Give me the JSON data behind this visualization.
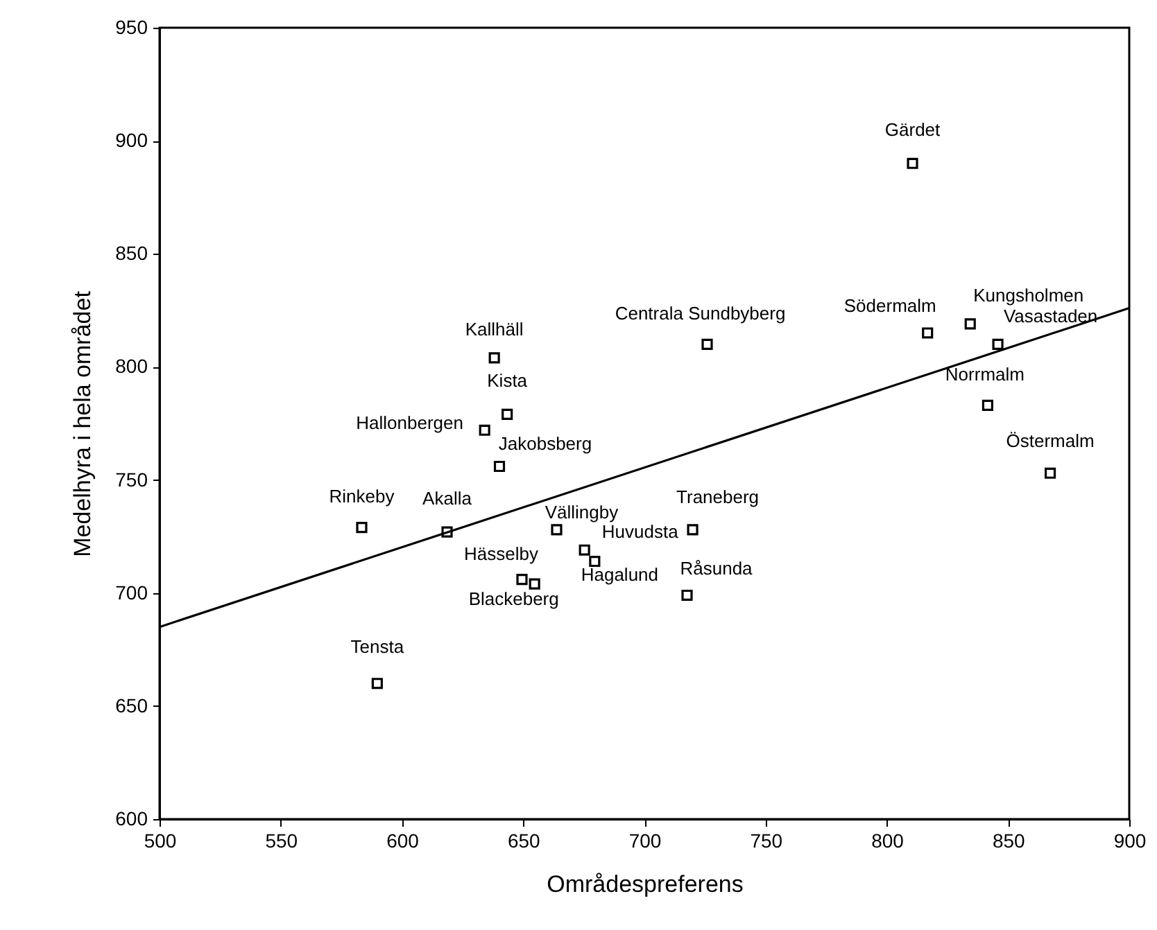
{
  "chart_data": {
    "type": "scatter",
    "xlabel": "Områdespreferens",
    "ylabel": "Medelhyra i hela området",
    "xlim": [
      500,
      900
    ],
    "xticks": [
      500,
      550,
      600,
      650,
      700,
      750,
      800,
      850,
      900
    ],
    "ylim": [
      600,
      950
    ],
    "yticks": [
      600,
      650,
      700,
      750,
      800,
      850,
      900,
      950
    ],
    "grid": false,
    "marker": "square",
    "series": [
      {
        "color": "#000000",
        "x": [
          810.6,
          816.8,
          834.4,
          845.8,
          841.6,
          867.4,
          725.9,
          638.1,
          643.4,
          634.1,
          640.2,
          583.4,
          618.6,
          663.8,
          649.5,
          654.7,
          675.3,
          679.5,
          719.9,
          717.6,
          589.8
        ],
        "values": [
          890,
          815,
          819,
          810,
          783,
          753,
          810,
          804,
          779,
          772,
          756,
          729,
          727,
          728,
          706,
          704,
          719,
          714,
          728,
          699,
          660
        ]
      },
      {
        "type": "line",
        "color": "#000000",
        "x": [
          500,
          900
        ],
        "values": [
          685,
          826
        ],
        "line_style": "solid",
        "marker": "none"
      }
    ],
    "annotations": [
      {
        "text": "Gärdet",
        "x": 810.6,
        "y": 890
      },
      {
        "text": "Södermalm",
        "x": 816.8,
        "y": 815
      },
      {
        "text": "Kungsholmen",
        "x": 834.4,
        "y": 819
      },
      {
        "text": "Vasastaden",
        "x": 845.8,
        "y": 810
      },
      {
        "text": "Norrmalm",
        "x": 841.6,
        "y": 783
      },
      {
        "text": "Östermalm",
        "x": 867.4,
        "y": 753
      },
      {
        "text": "Centrala Sundbyberg",
        "x": 725.9,
        "y": 810
      },
      {
        "text": "Kallhäll",
        "x": 638.1,
        "y": 804
      },
      {
        "text": "Kista",
        "x": 643.4,
        "y": 779
      },
      {
        "text": "Hallonbergen",
        "x": 634.1,
        "y": 772
      },
      {
        "text": "Jakobsberg",
        "x": 640.2,
        "y": 756
      },
      {
        "text": "Rinkeby",
        "x": 583.4,
        "y": 729
      },
      {
        "text": "Akalla",
        "x": 618.6,
        "y": 727
      },
      {
        "text": "Vällingby",
        "x": 663.8,
        "y": 728
      },
      {
        "text": "Hässelby",
        "x": 649.5,
        "y": 706
      },
      {
        "text": "Blackeberg",
        "x": 654.7,
        "y": 704
      },
      {
        "text": "Huvudsta",
        "x": 675.3,
        "y": 719
      },
      {
        "text": "Hagalund",
        "x": 679.5,
        "y": 714
      },
      {
        "text": "Traneberg",
        "x": 719.9,
        "y": 728
      },
      {
        "text": "Råsunda",
        "x": 717.6,
        "y": 699
      },
      {
        "text": "Tensta",
        "x": 589.8,
        "y": 660
      }
    ]
  }
}
